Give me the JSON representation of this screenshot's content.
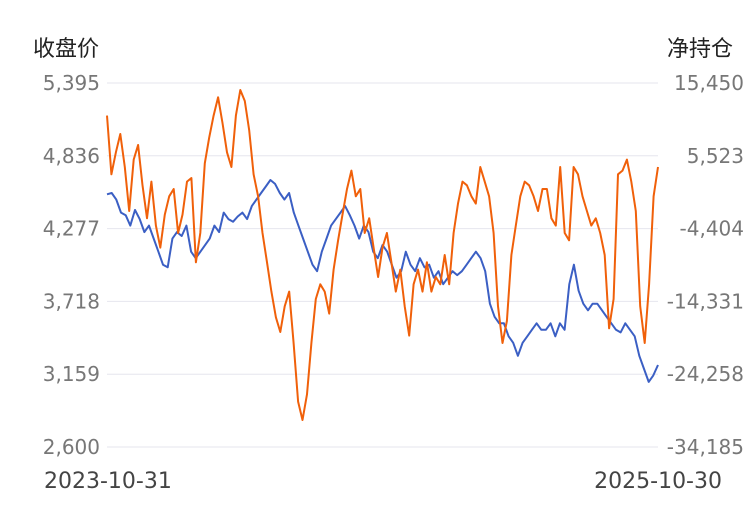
{
  "chart_data": {
    "type": "line",
    "left_axis_title": "收盘价",
    "right_axis_title": "净持仓",
    "left_ticks": [
      "5,395",
      "4,836",
      "4,277",
      "3,718",
      "3,159",
      "2,600"
    ],
    "right_ticks": [
      "15,450",
      "5,523",
      "-4,404",
      "-14,331",
      "-24,258",
      "-34,185"
    ],
    "left_range": [
      2600,
      5395
    ],
    "right_range": [
      -34185,
      15450
    ],
    "x_labels": [
      "2023-10-31",
      "2025-10-30"
    ],
    "grid": true,
    "series": [
      {
        "axis": "left",
        "color": "#3b5fc4",
        "values": [
          4540,
          4550,
          4500,
          4400,
          4380,
          4300,
          4420,
          4350,
          4250,
          4300,
          4200,
          4100,
          4000,
          3980,
          4200,
          4250,
          4220,
          4300,
          4100,
          4050,
          4100,
          4150,
          4200,
          4300,
          4250,
          4400,
          4350,
          4330,
          4370,
          4400,
          4350,
          4450,
          4500,
          4550,
          4600,
          4650,
          4620,
          4550,
          4500,
          4550,
          4400,
          4300,
          4200,
          4100,
          4000,
          3950,
          4100,
          4200,
          4300,
          4350,
          4400,
          4450,
          4380,
          4300,
          4200,
          4300,
          4250,
          4100,
          4050,
          4150,
          4100,
          4000,
          3900,
          3950,
          4100,
          4000,
          3950,
          4050,
          3980,
          4000,
          3900,
          3950,
          3850,
          3900,
          3950,
          3920,
          3950,
          4000,
          4050,
          4100,
          4050,
          3950,
          3700,
          3600,
          3550,
          3550,
          3450,
          3400,
          3300,
          3400,
          3450,
          3500,
          3550,
          3500,
          3500,
          3550,
          3450,
          3550,
          3500,
          3850,
          4000,
          3800,
          3700,
          3650,
          3700,
          3700,
          3650,
          3600,
          3550,
          3500,
          3480,
          3550,
          3500,
          3450,
          3300,
          3200,
          3100,
          3150,
          3230
        ]
      },
      {
        "axis": "right",
        "color": "#f0600a",
        "values": [
          11000,
          3000,
          6000,
          8500,
          4000,
          -2000,
          5000,
          7000,
          1500,
          -3000,
          2000,
          -4000,
          -7000,
          -2500,
          0,
          1000,
          -5000,
          -2500,
          2000,
          2500,
          -9000,
          -5000,
          4500,
          8000,
          11000,
          13500,
          10000,
          6000,
          4000,
          11000,
          14500,
          13000,
          9000,
          3000,
          0,
          -5000,
          -9000,
          -13000,
          -16500,
          -18500,
          -15000,
          -13000,
          -20000,
          -28000,
          -30500,
          -27000,
          -20000,
          -14000,
          -12000,
          -13000,
          -16000,
          -10000,
          -6000,
          -2500,
          1000,
          3500,
          0,
          1000,
          -5000,
          -3000,
          -7000,
          -11000,
          -7000,
          -5000,
          -9000,
          -13000,
          -10000,
          -15000,
          -19000,
          -12000,
          -10000,
          -13000,
          -9000,
          -13000,
          -11000,
          -12000,
          -8000,
          -12000,
          -5000,
          -1000,
          2000,
          1500,
          0,
          -1000,
          4000,
          2000,
          0,
          -5000,
          -15000,
          -20000,
          -17000,
          -8000,
          -4000,
          0,
          2000,
          1500,
          0,
          -2000,
          1000,
          1000,
          -3000,
          -4000,
          4000,
          -5000,
          -6000,
          4000,
          3000,
          0,
          -2000,
          -4000,
          -3000,
          -5000,
          -8000,
          -18000,
          -14000,
          3000,
          3500,
          5000,
          2000,
          -2000,
          -15000,
          -20000,
          -12000,
          0,
          4000
        ]
      }
    ]
  }
}
